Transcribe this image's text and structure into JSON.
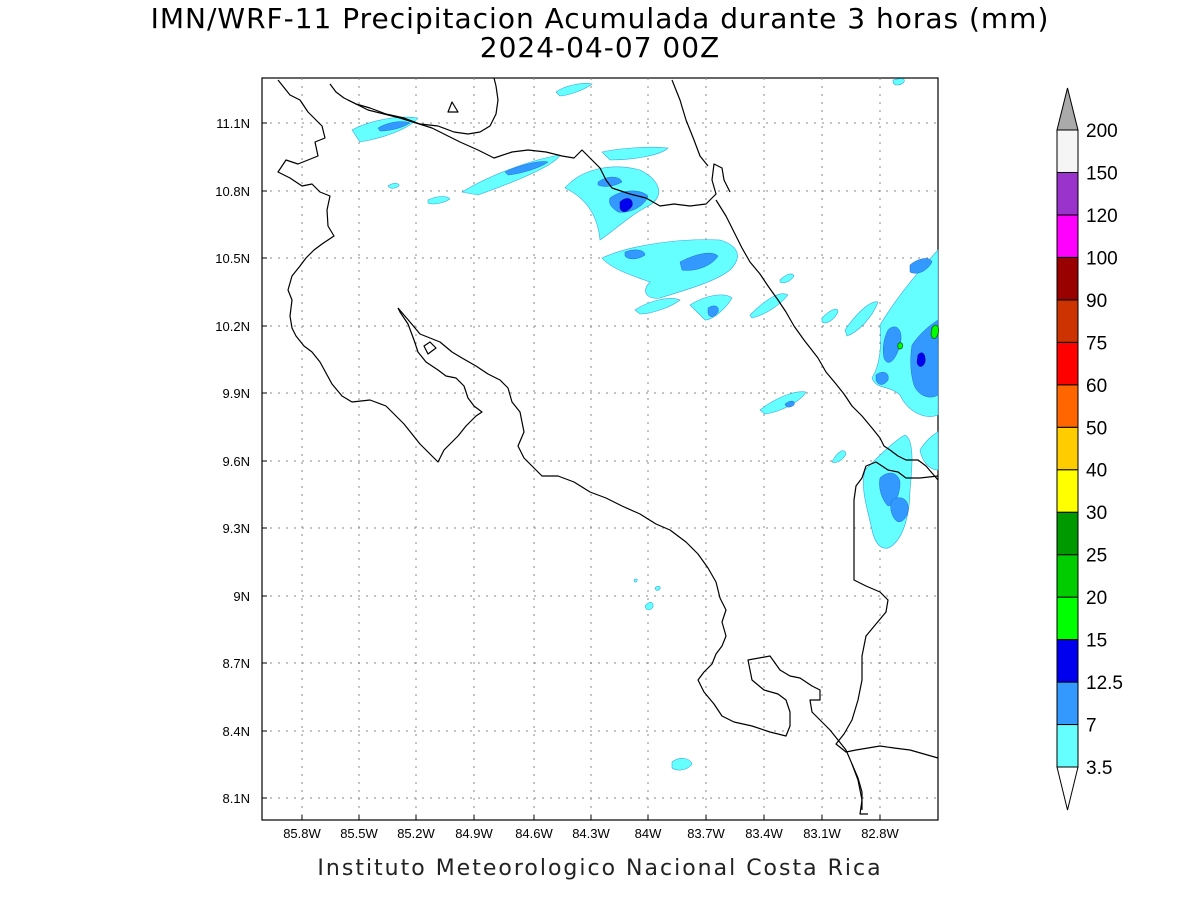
{
  "title": {
    "line1": "IMN/WRF-11 Precipitacion Acumulada durante 3 horas (mm)",
    "line2": "2024-04-07 00Z"
  },
  "footer": "Instituto Meteorologico Nacional Costa Rica",
  "map": {
    "lon_range": [
      -86.0,
      -82.5
    ],
    "lat_range": [
      8.0,
      11.3
    ],
    "x_ticks": [
      "85.8W",
      "85.5W",
      "85.2W",
      "84.9W",
      "84.6W",
      "84.3W",
      "84W",
      "83.7W",
      "83.4W",
      "83.1W",
      "82.8W"
    ],
    "y_ticks": [
      "11.1N",
      "10.8N",
      "10.5N",
      "10.2N",
      "9.9N",
      "9.6N",
      "9.3N",
      "9N",
      "8.7N",
      "8.4N",
      "8.1N"
    ],
    "grid": true
  },
  "colorbar": {
    "levels": [
      "3.5",
      "7",
      "12.5",
      "15",
      "20",
      "25",
      "30",
      "40",
      "50",
      "60",
      "75",
      "90",
      "100",
      "120",
      "150",
      "200"
    ],
    "colors": [
      "#66ffff",
      "#3399ff",
      "#0000ee",
      "#00ff00",
      "#00cc00",
      "#009900",
      "#ffff00",
      "#ffcc00",
      "#ff6600",
      "#ff0000",
      "#cc3300",
      "#990000",
      "#ff00ff",
      "#9933cc",
      "#f5f5f5",
      "#aaaaaa"
    ]
  }
}
